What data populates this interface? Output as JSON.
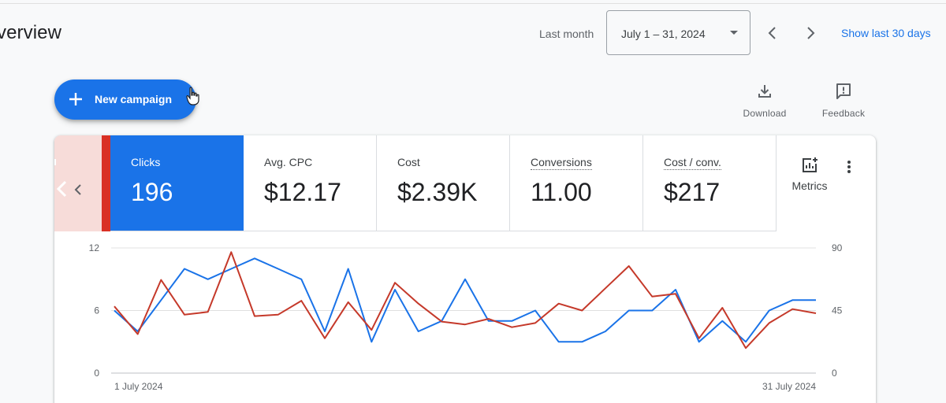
{
  "header": {
    "title": "verview",
    "period_label": "Last month",
    "date_range": "July 1 – 31, 2024",
    "show_last": "Show last 30 days"
  },
  "toolbar": {
    "new_campaign_label": "New campaign",
    "download_label": "Download",
    "feedback_label": "Feedback"
  },
  "scorecards": [
    {
      "name": "Clicks",
      "value": "196",
      "active": true
    },
    {
      "name": "Avg. CPC",
      "value": "$12.17",
      "active": false
    },
    {
      "name": "Cost",
      "value": "$2.39K",
      "active": false
    },
    {
      "name": "Conversions",
      "value": "11.00",
      "active": false
    },
    {
      "name": "Cost / conv.",
      "value": "$217",
      "active": false
    }
  ],
  "metrics_label": "Metrics",
  "colors": {
    "accent": "#1a73e8",
    "clicks_series": "#1a73e8",
    "avg_cpc_series": "#c5392a"
  },
  "chart_data": {
    "type": "line",
    "x_start_label": "1 July 2024",
    "x_end_label": "31 July 2024",
    "y_left": {
      "range": [
        0,
        12
      ],
      "ticks": [
        "0",
        "6",
        "12"
      ]
    },
    "y_right": {
      "range": [
        0,
        90
      ],
      "ticks": [
        "0",
        "45",
        "90"
      ]
    },
    "grid": true,
    "series": [
      {
        "axis": "left",
        "color": "#1a73e8",
        "values": [
          6,
          4,
          7,
          10,
          9,
          10,
          11,
          10,
          9,
          4,
          10,
          3,
          8,
          4,
          5,
          9,
          5,
          5,
          6,
          3,
          3,
          4,
          6,
          6,
          8,
          3,
          5,
          3,
          6,
          7,
          7
        ]
      },
      {
        "axis": "right",
        "color": "#c5392a",
        "values": [
          48,
          28,
          67,
          42,
          44,
          87,
          41,
          42,
          52,
          25,
          51,
          31,
          65,
          50,
          37,
          35,
          39,
          33,
          36,
          50,
          45,
          61,
          77,
          55,
          57,
          25,
          47,
          18,
          36,
          46,
          43
        ]
      }
    ]
  }
}
